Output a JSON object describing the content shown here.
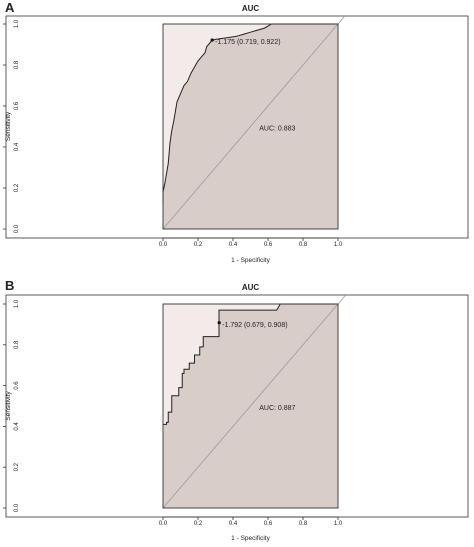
{
  "panels": [
    {
      "panel_label": "A",
      "chart_data": {
        "type": "line",
        "title": "AUC",
        "xlabel": "1 - Specificity",
        "ylabel": "Sensitivity",
        "xlim": [
          0,
          1
        ],
        "ylim": [
          0,
          1
        ],
        "x_ticks": [
          "0.0",
          "0.2",
          "0.4",
          "0.6",
          "0.8",
          "1.0"
        ],
        "y_ticks": [
          "0.0",
          "0.2",
          "0.4",
          "0.6",
          "0.8",
          "1.0"
        ],
        "grid": false,
        "auc_label": "AUC: 0.883",
        "auc_label_pos": [
          0.55,
          0.48
        ],
        "threshold_label": "-1.175 (0.719, 0.922)",
        "threshold_point": [
          0.281,
          0.922
        ],
        "diagonal": true,
        "colors": {
          "roc_fill": "#d9cdca",
          "upper_fill": "#f3ebe9",
          "curve": "#222222",
          "diagonal": "#9a9a9a",
          "frame": "#333333"
        },
        "roc": [
          [
            0.0,
            0.12
          ],
          [
            0.0,
            0.18
          ],
          [
            0.01,
            0.22
          ],
          [
            0.02,
            0.27
          ],
          [
            0.03,
            0.32
          ],
          [
            0.04,
            0.42
          ],
          [
            0.05,
            0.48
          ],
          [
            0.06,
            0.52
          ],
          [
            0.07,
            0.57
          ],
          [
            0.08,
            0.62
          ],
          [
            0.1,
            0.66
          ],
          [
            0.12,
            0.7
          ],
          [
            0.14,
            0.72
          ],
          [
            0.16,
            0.76
          ],
          [
            0.18,
            0.79
          ],
          [
            0.2,
            0.82
          ],
          [
            0.22,
            0.84
          ],
          [
            0.24,
            0.86
          ],
          [
            0.25,
            0.89
          ],
          [
            0.26,
            0.9
          ],
          [
            0.28,
            0.92
          ],
          [
            0.3,
            0.925
          ],
          [
            0.34,
            0.93
          ],
          [
            0.38,
            0.935
          ],
          [
            0.42,
            0.94
          ],
          [
            0.46,
            0.95
          ],
          [
            0.5,
            0.96
          ],
          [
            0.54,
            0.97
          ],
          [
            0.58,
            0.98
          ],
          [
            0.6,
            0.99
          ],
          [
            0.62,
            1.0
          ],
          [
            1.0,
            1.0
          ]
        ]
      }
    },
    {
      "panel_label": "B",
      "chart_data": {
        "type": "line",
        "title": "AUC",
        "xlabel": "1 - Specificity",
        "ylabel": "Sensitivity",
        "xlim": [
          0,
          1
        ],
        "ylim": [
          0,
          1
        ],
        "x_ticks": [
          "0.0",
          "0.2",
          "0.4",
          "0.6",
          "0.8",
          "1.0"
        ],
        "y_ticks": [
          "0.0",
          "0.2",
          "0.4",
          "0.6",
          "0.8",
          "1.0"
        ],
        "grid": false,
        "auc_label": "AUC: 0.887",
        "auc_label_pos": [
          0.55,
          0.48
        ],
        "threshold_label": "-1.792 (0.679, 0.908)",
        "threshold_point": [
          0.321,
          0.908
        ],
        "diagonal": true,
        "colors": {
          "roc_fill": "#d9cdca",
          "upper_fill": "#f3ebe9",
          "curve": "#222222",
          "diagonal": "#9a9a9a",
          "frame": "#333333"
        },
        "roc": [
          [
            0.0,
            0.41
          ],
          [
            0.02,
            0.41
          ],
          [
            0.02,
            0.42
          ],
          [
            0.03,
            0.42
          ],
          [
            0.03,
            0.47
          ],
          [
            0.05,
            0.47
          ],
          [
            0.05,
            0.55
          ],
          [
            0.09,
            0.55
          ],
          [
            0.09,
            0.59
          ],
          [
            0.11,
            0.59
          ],
          [
            0.11,
            0.66
          ],
          [
            0.12,
            0.66
          ],
          [
            0.12,
            0.68
          ],
          [
            0.15,
            0.68
          ],
          [
            0.15,
            0.71
          ],
          [
            0.18,
            0.71
          ],
          [
            0.18,
            0.75
          ],
          [
            0.21,
            0.75
          ],
          [
            0.21,
            0.79
          ],
          [
            0.23,
            0.79
          ],
          [
            0.23,
            0.84
          ],
          [
            0.32,
            0.84
          ],
          [
            0.32,
            0.97
          ],
          [
            0.65,
            0.97
          ],
          [
            0.67,
            1.0
          ],
          [
            1.0,
            1.0
          ]
        ]
      }
    }
  ]
}
